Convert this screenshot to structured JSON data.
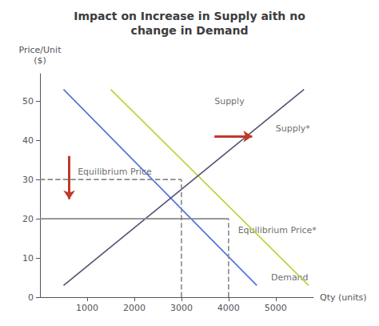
{
  "chart_data": {
    "type": "line",
    "title": "Impact on Increase in Supply aith no\nchange in Demand",
    "xlabel": "Qty (units)",
    "ylabel": "Price/Unit\n($)",
    "xlim": [
      0,
      5800
    ],
    "ylim": [
      0,
      57
    ],
    "xticks": [
      1000,
      2000,
      3000,
      4000,
      5000
    ],
    "yticks": [
      0,
      10,
      20,
      30,
      40,
      50
    ],
    "grid": false,
    "series": [
      {
        "x": [
          500,
          4600
        ],
        "values": [
          53,
          3
        ]
      },
      {
        "x": [
          1500,
          5700
        ],
        "values": [
          53,
          3
        ]
      },
      {
        "x": [
          500,
          5600
        ],
        "values": [
          3,
          53
        ]
      },
      {
        "x": [
          0,
          3000
        ],
        "values": [
          30,
          30
        ],
        "color": "#888888",
        "line_style": "dashed"
      },
      {
        "x": [
          3000,
          3000
        ],
        "values": [
          0,
          30
        ],
        "color": "#888888",
        "line_style": "dashed"
      },
      {
        "x": [
          0,
          4000
        ],
        "values": [
          20,
          20
        ],
        "color": "#888888",
        "line_style": "solid"
      },
      {
        "x": [
          4000,
          4000
        ],
        "values": [
          0,
          20
        ],
        "color": "#888888",
        "line_style": "dashed"
      }
    ],
    "annotations": [
      {
        "text": "Supply",
        "x": 3700,
        "y": 50
      },
      {
        "text": "Supply*",
        "x": 5000,
        "y": 43
      },
      {
        "text": "Demand",
        "x": 4900,
        "y": 5
      },
      {
        "text": "Equilibrium Price",
        "x": 800,
        "y": 32
      },
      {
        "text": "Equilibrium Price*",
        "x": 4200,
        "y": 17
      }
    ],
    "arrows": [
      {
        "x": [
          3700,
          4500
        ],
        "y": [
          41,
          41
        ],
        "color": "#c0392b"
      },
      {
        "x": [
          620,
          620
        ],
        "y": [
          36,
          25
        ],
        "color": "#c0392b"
      }
    ]
  }
}
